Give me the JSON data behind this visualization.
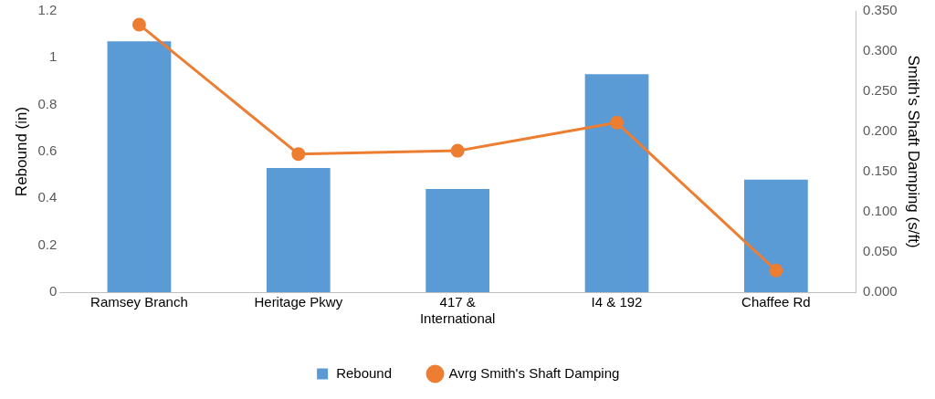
{
  "chart_data": {
    "type": "bar",
    "categories": [
      "Ramsey Branch",
      "Heritage Pkwy",
      "417 & International",
      "I4 & 192",
      "Chaffee Rd"
    ],
    "series": [
      {
        "name": "Rebound",
        "color": "#5b9bd5",
        "values": [
          1.07,
          0.53,
          0.44,
          0.93,
          0.48
        ]
      },
      {
        "name": "Avrg Smith's Shaft Damping",
        "type": "line",
        "axis": "y2",
        "color": "#ed7d31",
        "marker": "circle",
        "values": [
          0.333,
          0.172,
          0.176,
          0.211,
          0.027
        ]
      }
    ],
    "ylabel": "Rebound (in)",
    "y2label": "Smith's Shaft Damping (s/ft)",
    "ylim": [
      0,
      1.2
    ],
    "yticks": [
      0,
      0.2,
      0.4,
      0.6,
      0.8,
      1,
      1.2
    ],
    "y2lim": [
      0,
      0.35
    ],
    "y2ticks": [
      {
        "value": 0,
        "label": "0.000"
      },
      {
        "value": 0.05,
        "label": "0.050"
      },
      {
        "value": 0.1,
        "label": "0.100"
      },
      {
        "value": 0.15,
        "label": "0.150"
      },
      {
        "value": 0.2,
        "label": "0.200"
      },
      {
        "value": 0.25,
        "label": "0.250"
      },
      {
        "value": 0.3,
        "label": "0.300"
      },
      {
        "value": 0.35,
        "label": "0.350"
      }
    ],
    "grid": false,
    "legend": "bottom"
  }
}
